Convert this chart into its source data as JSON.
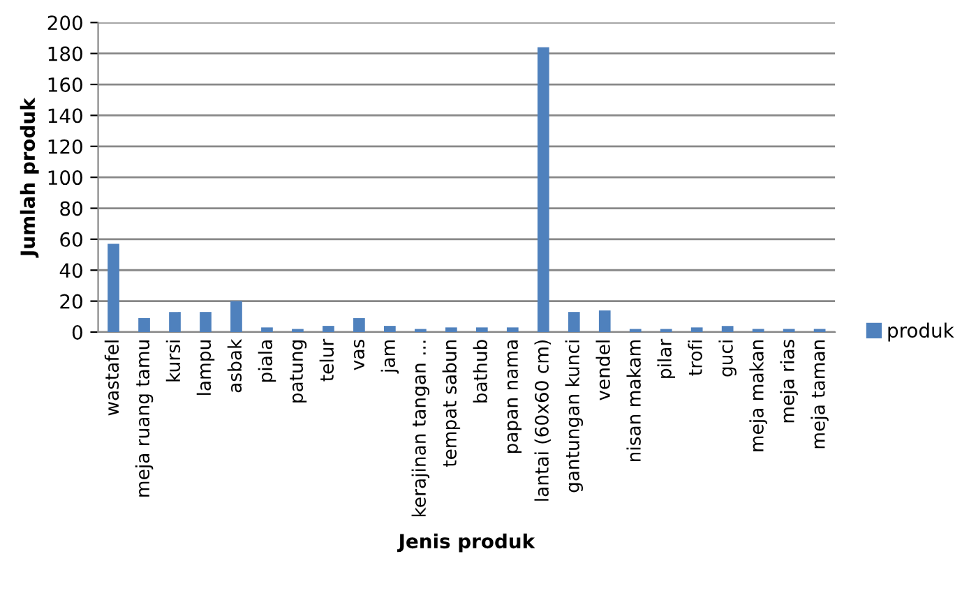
{
  "chart_data": {
    "type": "bar",
    "xlabel": "Jenis produk",
    "ylabel": "Jumlah produk",
    "categories": [
      "wastafel",
      "meja ruang tamu",
      "kursi",
      "lampu",
      "asbak",
      "piala",
      "patung",
      "telur",
      "vas",
      "jam",
      "kerajinan tangan ...",
      "tempat sabun",
      "bathub",
      "papan nama",
      "lantai (60x60 cm)",
      "gantungan kunci",
      "vendel",
      "nisan makam",
      "pilar",
      "trofi",
      "guci",
      "meja makan",
      "meja rias",
      "meja taman"
    ],
    "series": [
      {
        "name": "produk",
        "color": "#4f81bd",
        "values": [
          57,
          9,
          13,
          13,
          20,
          3,
          2,
          4,
          9,
          4,
          2,
          3,
          3,
          3,
          184,
          13,
          14,
          2,
          2,
          3,
          4,
          2,
          2,
          2
        ]
      }
    ],
    "ylim": [
      0,
      200
    ],
    "yticks": [
      0,
      20,
      40,
      60,
      80,
      100,
      120,
      140,
      160,
      180,
      200
    ],
    "grid": "y",
    "legend": "right"
  }
}
